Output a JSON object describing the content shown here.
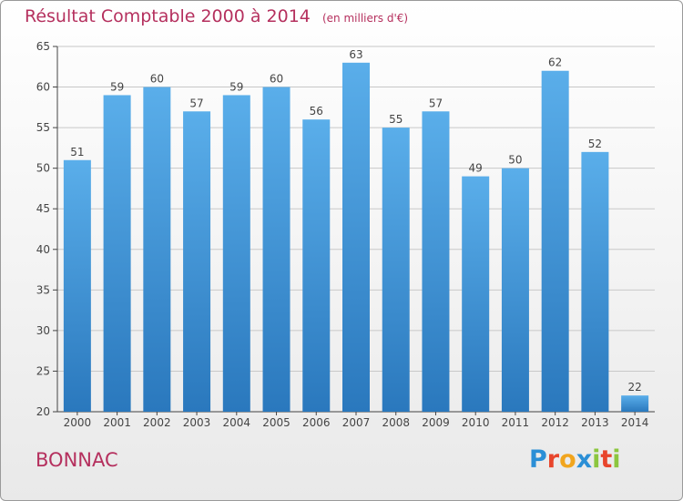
{
  "title": "Résultat Comptable 2000 à 2014",
  "subtitle": "(en milliers d'€)",
  "place": "BONNAC",
  "logo": {
    "letters": [
      "P",
      "r",
      "o",
      "x",
      "i",
      "t",
      "i"
    ],
    "colors": [
      "#2b8fd6",
      "#e8452c",
      "#f1a51e",
      "#2b8fd6",
      "#8cc63f",
      "#e8452c",
      "#8cc63f"
    ]
  },
  "colors": {
    "bar_top": "#5aaeea",
    "bar_bottom": "#2a78bd",
    "text": "#b5305e",
    "axis": "#444444",
    "grid": "#c8c8c8"
  },
  "chart_data": {
    "type": "bar",
    "title": "Résultat Comptable 2000 à 2014",
    "subtitle": "(en milliers d'€)",
    "categories": [
      "2000",
      "2001",
      "2002",
      "2003",
      "2004",
      "2005",
      "2006",
      "2007",
      "2008",
      "2009",
      "2010",
      "2011",
      "2012",
      "2013",
      "2014"
    ],
    "values": [
      51,
      59,
      60,
      57,
      59,
      60,
      56,
      63,
      55,
      57,
      49,
      50,
      62,
      52,
      22
    ],
    "ylim": [
      20,
      65
    ],
    "yticks": [
      "20",
      "25",
      "30",
      "35",
      "40",
      "45",
      "50",
      "55",
      "60",
      "65"
    ],
    "grid": true
  }
}
